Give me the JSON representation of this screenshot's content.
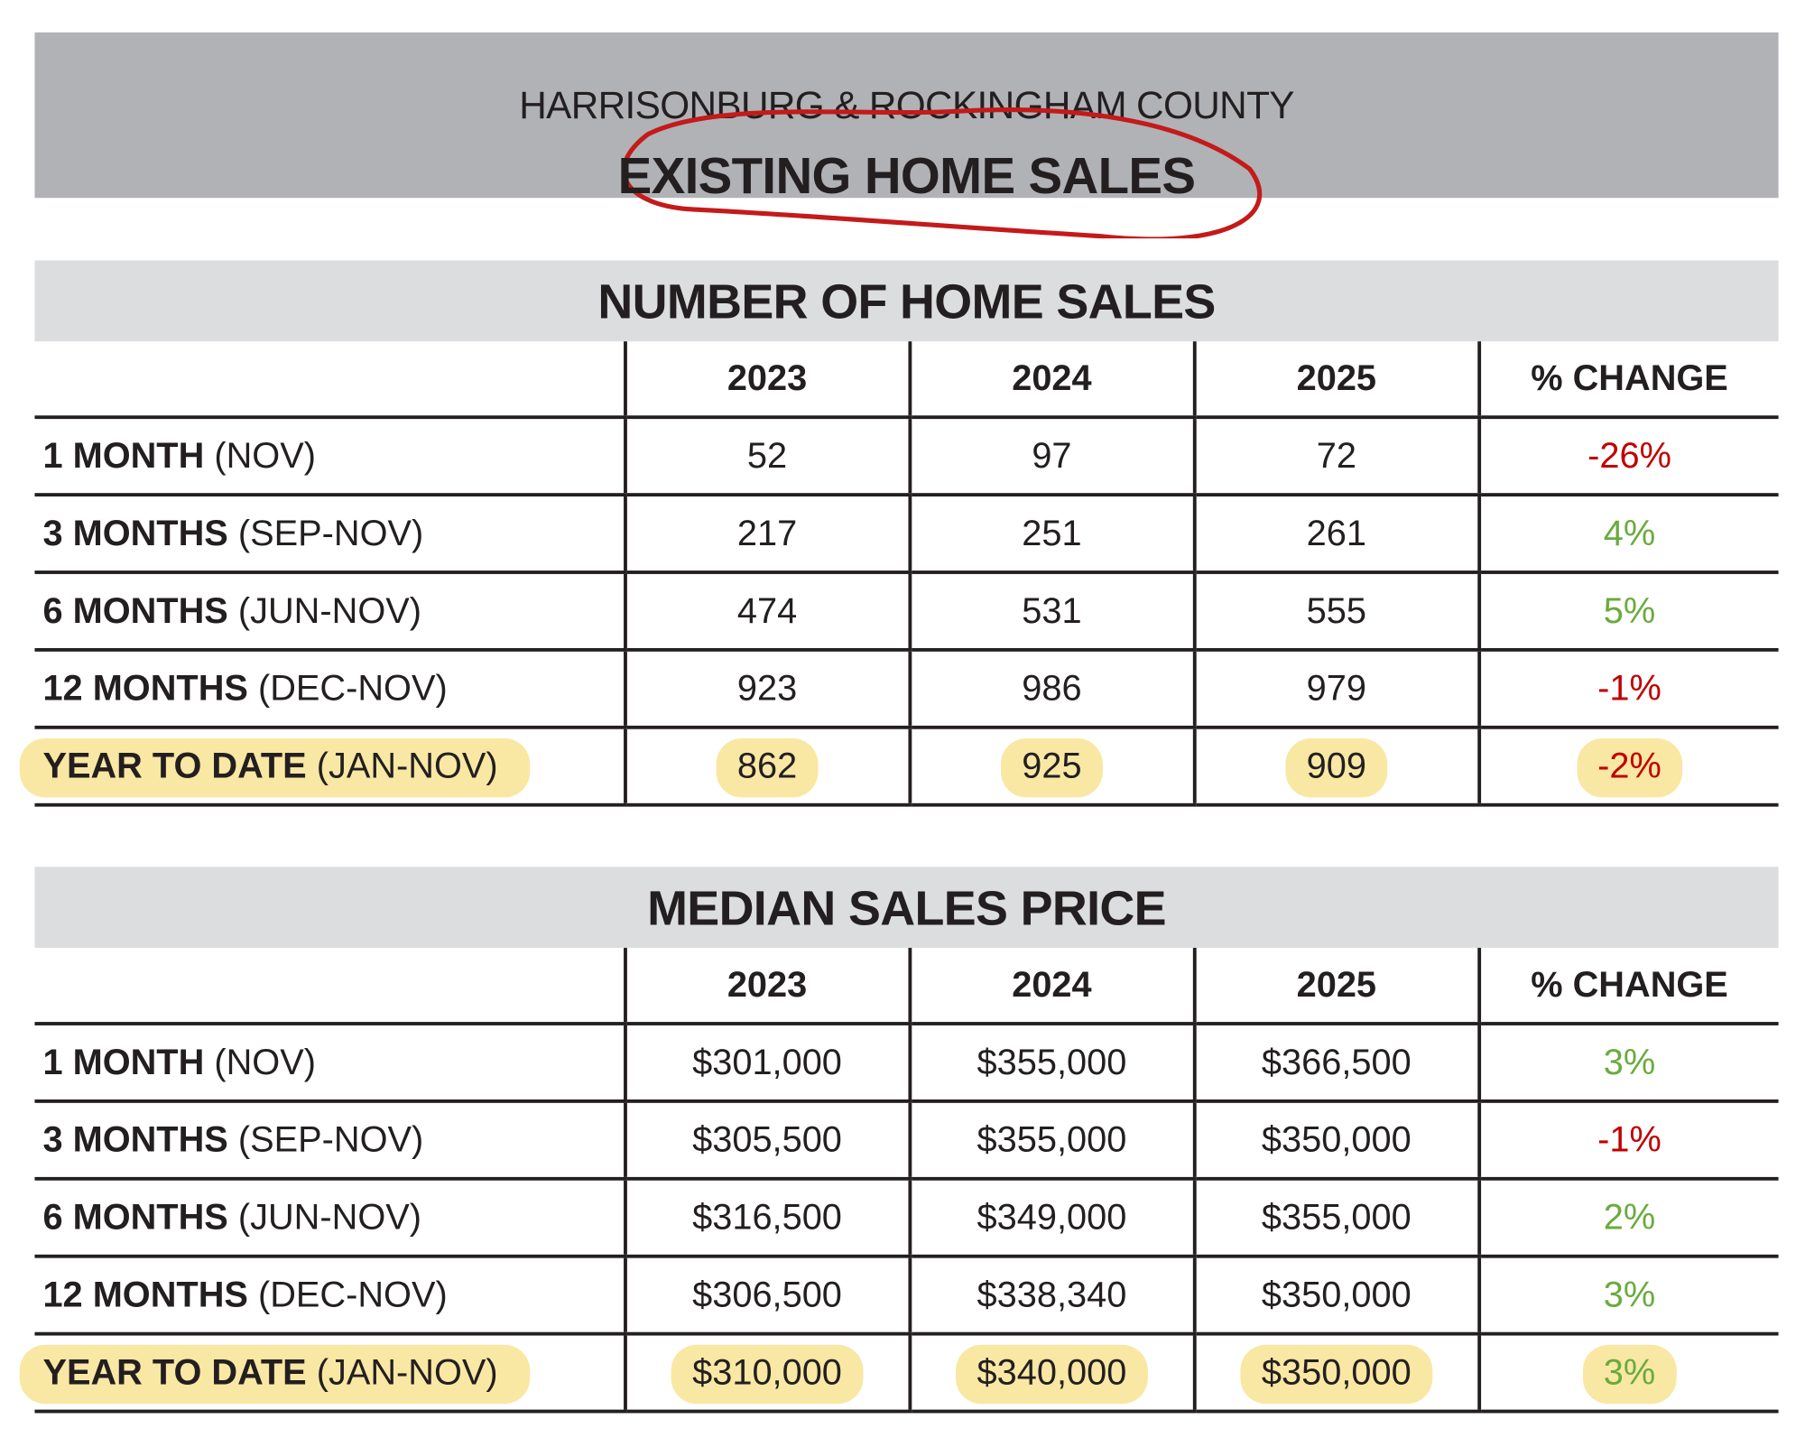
{
  "header": {
    "subtitle": "HARRISONBURG & ROCKINGHAM COUNTY",
    "title": "EXISTING HOME SALES",
    "annotation_color": "#c41a1a"
  },
  "colors": {
    "negative": "#c00000",
    "positive": "#6aab3e",
    "highlight": "#f8e49a",
    "banner": "#b1b2b5",
    "section_header": "#dcdddf"
  },
  "sales": {
    "title": "NUMBER OF HOME SALES",
    "columns": [
      "2023",
      "2024",
      "2025",
      "% CHANGE"
    ],
    "rows": [
      {
        "label": "1 MONTH",
        "range": "(NOV)",
        "values": [
          "52",
          "97",
          "72"
        ],
        "change": "-26%",
        "trend": "neg",
        "highlighted": false
      },
      {
        "label": "3 MONTHS",
        "range": "(SEP-NOV)",
        "values": [
          "217",
          "251",
          "261"
        ],
        "change": "4%",
        "trend": "pos",
        "highlighted": false
      },
      {
        "label": "6 MONTHS",
        "range": "(JUN-NOV)",
        "values": [
          "474",
          "531",
          "555"
        ],
        "change": "5%",
        "trend": "pos",
        "highlighted": false
      },
      {
        "label": "12 MONTHS",
        "range": "(DEC-NOV)",
        "values": [
          "923",
          "986",
          "979"
        ],
        "change": "-1%",
        "trend": "neg",
        "highlighted": false
      },
      {
        "label": "YEAR TO DATE",
        "range": "(JAN-NOV)",
        "values": [
          "862",
          "925",
          "909"
        ],
        "change": "-2%",
        "trend": "neg",
        "highlighted": true
      }
    ]
  },
  "price": {
    "title": "MEDIAN SALES PRICE",
    "columns": [
      "2023",
      "2024",
      "2025",
      "% CHANGE"
    ],
    "rows": [
      {
        "label": "1 MONTH",
        "range": "(NOV)",
        "values": [
          "$301,000",
          "$355,000",
          "$366,500"
        ],
        "change": "3%",
        "trend": "pos",
        "highlighted": false
      },
      {
        "label": "3 MONTHS",
        "range": "(SEP-NOV)",
        "values": [
          "$305,500",
          "$355,000",
          "$350,000"
        ],
        "change": "-1%",
        "trend": "neg",
        "highlighted": false
      },
      {
        "label": "6 MONTHS",
        "range": "(JUN-NOV)",
        "values": [
          "$316,500",
          "$349,000",
          "$355,000"
        ],
        "change": "2%",
        "trend": "pos",
        "highlighted": false
      },
      {
        "label": "12 MONTHS",
        "range": "(DEC-NOV)",
        "values": [
          "$306,500",
          "$338,340",
          "$350,000"
        ],
        "change": "3%",
        "trend": "pos",
        "highlighted": false
      },
      {
        "label": "YEAR TO DATE",
        "range": "(JAN-NOV)",
        "values": [
          "$310,000",
          "$340,000",
          "$350,000"
        ],
        "change": "3%",
        "trend": "pos",
        "highlighted": true
      }
    ]
  }
}
